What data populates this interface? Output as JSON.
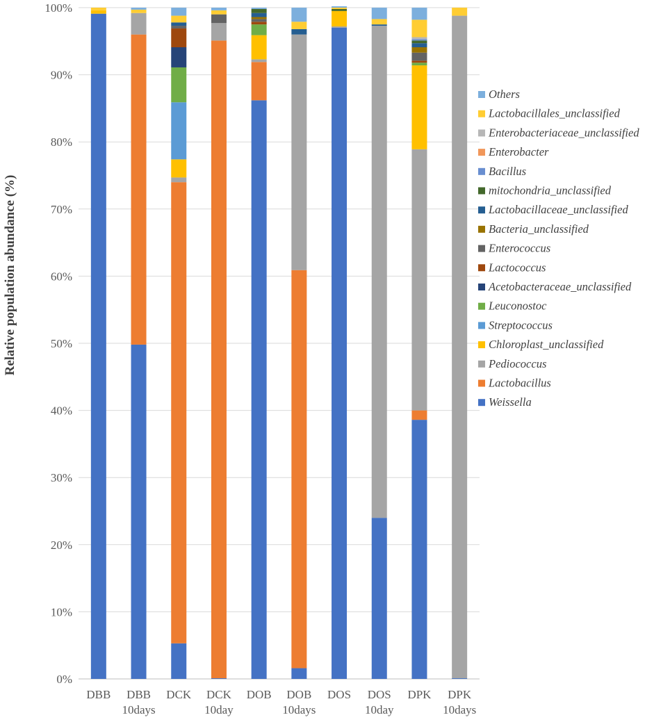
{
  "chart_data": {
    "type": "bar",
    "stacked": true,
    "percent": true,
    "ylabel": "Relative population abundance (%)",
    "xlabel": "",
    "ylim": [
      0,
      100
    ],
    "yticks": [
      "0%",
      "10%",
      "20%",
      "30%",
      "40%",
      "50%",
      "60%",
      "70%",
      "80%",
      "90%",
      "100%"
    ],
    "grid": true,
    "legend_position": "right",
    "categories": [
      [
        "DBB"
      ],
      [
        "DBB",
        "10days"
      ],
      [
        "DCK"
      ],
      [
        "DCK",
        "10day"
      ],
      [
        "DOB"
      ],
      [
        "DOB",
        "10days"
      ],
      [
        "DOS"
      ],
      [
        "DOS",
        "10day"
      ],
      [
        "DPK"
      ],
      [
        "DPK",
        "10days"
      ]
    ],
    "series": [
      {
        "name": "Weissella",
        "color": "#4472C4",
        "values": [
          99.1,
          49.8,
          5.3,
          0.1,
          86.2,
          1.6,
          97.0,
          24.0,
          38.6,
          0.1
        ]
      },
      {
        "name": "Lactobacillus",
        "color": "#ED7D31",
        "values": [
          0.0,
          46.2,
          68.7,
          95.0,
          5.7,
          59.3,
          0.0,
          0.0,
          1.4,
          0.0
        ]
      },
      {
        "name": "Pediococcus",
        "color": "#A5A5A5",
        "values": [
          0.0,
          3.2,
          0.7,
          2.6,
          0.4,
          35.1,
          0.2,
          73.3,
          38.9,
          98.7
        ]
      },
      {
        "name": "Chloroplast_unclassified",
        "color": "#FFC000",
        "values": [
          0.5,
          0.0,
          2.7,
          0.0,
          3.6,
          0.0,
          2.3,
          0.0,
          12.5,
          0.0
        ]
      },
      {
        "name": "Streptococcus",
        "color": "#5B9BD5",
        "values": [
          0.0,
          0.0,
          8.5,
          0.0,
          0.0,
          0.0,
          0.0,
          0.0,
          0.0,
          0.0
        ]
      },
      {
        "name": "Leuconostoc",
        "color": "#70AD47",
        "values": [
          0.0,
          0.0,
          5.2,
          0.0,
          1.6,
          0.0,
          0.0,
          0.0,
          0.4,
          0.0
        ]
      },
      {
        "name": "Acetobacteraceae_unclassified",
        "color": "#264478",
        "values": [
          0.0,
          0.0,
          3.0,
          0.0,
          0.0,
          0.0,
          0.0,
          0.0,
          0.0,
          0.0
        ]
      },
      {
        "name": "Lactococcus",
        "color": "#9E480E",
        "values": [
          0.0,
          0.0,
          2.8,
          0.0,
          0.4,
          0.0,
          0.0,
          0.0,
          0.3,
          0.0
        ]
      },
      {
        "name": "Enterococcus",
        "color": "#636363",
        "values": [
          0.0,
          0.0,
          0.4,
          1.3,
          0.4,
          0.0,
          0.0,
          0.0,
          1.2,
          0.0
        ]
      },
      {
        "name": "Bacteria_unclassified",
        "color": "#997300",
        "values": [
          0.0,
          0.0,
          0.0,
          0.0,
          0.3,
          0.0,
          0.0,
          0.0,
          0.8,
          0.0
        ]
      },
      {
        "name": "Lactobacillaceae_unclassified",
        "color": "#255E91",
        "values": [
          0.0,
          0.0,
          0.5,
          0.0,
          0.6,
          0.8,
          0.0,
          0.2,
          0.6,
          0.0
        ]
      },
      {
        "name": "mitochondria_unclassified",
        "color": "#43682B",
        "values": [
          0.0,
          0.0,
          0.0,
          0.0,
          0.6,
          0.0,
          0.3,
          0.0,
          0.4,
          0.0
        ]
      },
      {
        "name": "Bacillus",
        "color": "#698ED0",
        "values": [
          0.0,
          0.0,
          0.0,
          0.0,
          0.0,
          0.0,
          0.0,
          0.0,
          0.2,
          0.0
        ]
      },
      {
        "name": "Enterobacter",
        "color": "#F1975A",
        "values": [
          0.0,
          0.0,
          0.0,
          0.0,
          0.0,
          0.0,
          0.0,
          0.0,
          0.0,
          0.0
        ]
      },
      {
        "name": "Enterobacteriaceae_unclassified",
        "color": "#B7B7B7",
        "values": [
          0.0,
          0.0,
          0.0,
          0.0,
          0.0,
          0.0,
          0.0,
          0.0,
          0.3,
          0.0
        ]
      },
      {
        "name": "Lactobacillales_unclassified",
        "color": "#FFCD33",
        "values": [
          0.4,
          0.5,
          1.0,
          0.6,
          0.0,
          1.1,
          0.2,
          0.8,
          2.6,
          1.2
        ]
      },
      {
        "name": "Others",
        "color": "#7CAFDD",
        "values": [
          0.0,
          0.3,
          1.2,
          0.4,
          0.2,
          2.1,
          0.2,
          1.7,
          1.8,
          0.0
        ]
      }
    ]
  }
}
